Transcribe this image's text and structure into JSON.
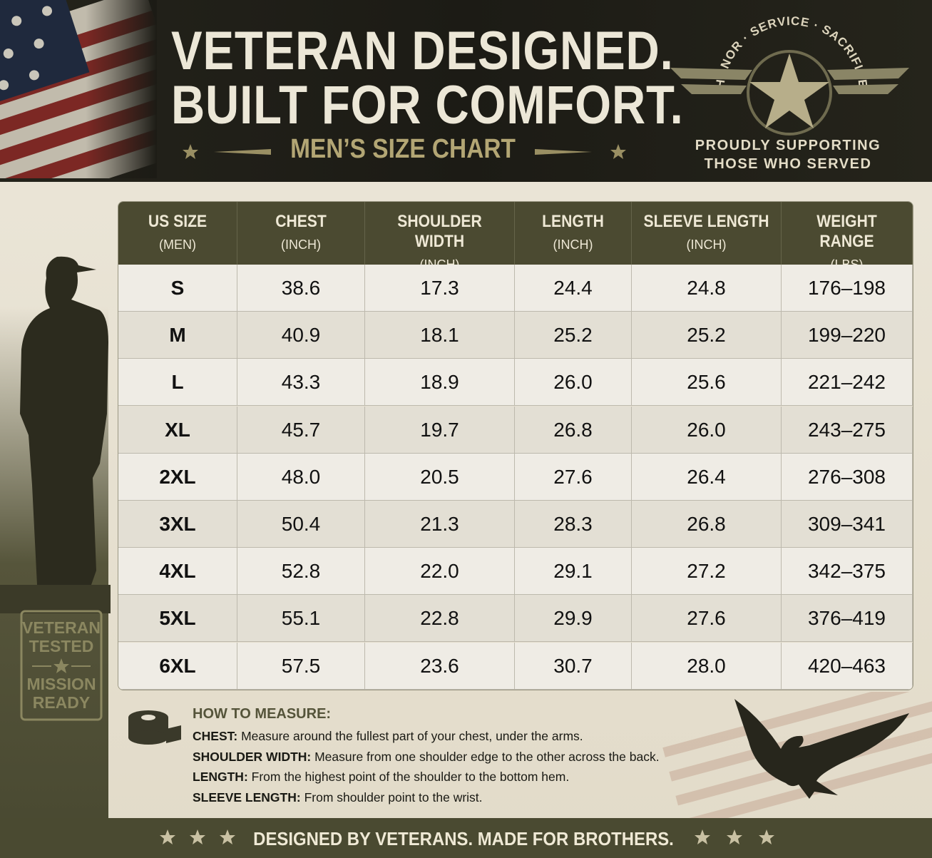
{
  "header": {
    "title_lines": [
      "VETERAN DESIGNED.",
      "BUILT FOR COMFORT."
    ],
    "subtitle": "MEN’S SIZE CHART",
    "badge_arc": "HONOR · SERVICE · SACRIFICE",
    "badge_lines": [
      "PROUDLY SUPPORTING",
      "THOSE WHO SERVED"
    ]
  },
  "side_badge": [
    "VETERAN",
    "TESTED",
    "MISSION",
    "READY"
  ],
  "table": {
    "columns": [
      {
        "name": "US SIZE",
        "unit": "(MEN)"
      },
      {
        "name": "CHEST",
        "unit": "(INCH)"
      },
      {
        "name": "SHOULDER WIDTH",
        "unit": "(INCH)"
      },
      {
        "name": "LENGTH",
        "unit": "(INCH)"
      },
      {
        "name": "SLEEVE LENGTH",
        "unit": "(INCH)"
      },
      {
        "name": "WEIGHT RANGE",
        "unit": "(LBS)"
      }
    ],
    "rows": [
      [
        "S",
        "38.6",
        "17.3",
        "24.4",
        "24.8",
        "176–198"
      ],
      [
        "M",
        "40.9",
        "18.1",
        "25.2",
        "25.2",
        "199–220"
      ],
      [
        "L",
        "43.3",
        "18.9",
        "26.0",
        "25.6",
        "221–242"
      ],
      [
        "XL",
        "45.7",
        "19.7",
        "26.8",
        "26.0",
        "243–275"
      ],
      [
        "2XL",
        "48.0",
        "20.5",
        "27.6",
        "26.4",
        "276–308"
      ],
      [
        "3XL",
        "50.4",
        "21.3",
        "28.3",
        "26.8",
        "309–341"
      ],
      [
        "4XL",
        "52.8",
        "22.0",
        "29.1",
        "27.2",
        "342–375"
      ],
      [
        "5XL",
        "55.1",
        "22.8",
        "29.9",
        "27.6",
        "376–419"
      ],
      [
        "6XL",
        "57.5",
        "23.6",
        "30.7",
        "28.0",
        "420–463"
      ]
    ]
  },
  "measure": {
    "title": "HOW TO MEASURE:",
    "items": [
      {
        "term": "CHEST:",
        "text": "Measure around the fullest part of your chest, under the arms."
      },
      {
        "term": "SHOULDER WIDTH:",
        "text": "Measure from one shoulder edge to the other across the back."
      },
      {
        "term": "LENGTH:",
        "text": "From the highest point of the shoulder to the bottom hem."
      },
      {
        "term": "SLEEVE LENGTH:",
        "text": "From shoulder point to the wrist."
      }
    ]
  },
  "footer": {
    "text": "DESIGNED BY VETERANS. MADE FOR BROTHERS."
  }
}
